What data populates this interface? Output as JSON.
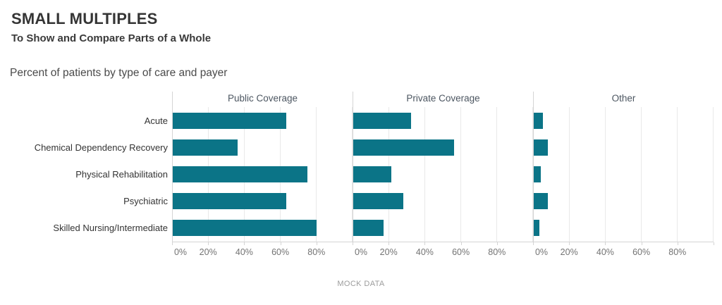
{
  "header": {
    "title": "SMALL MULTIPLES",
    "subtitle": "To Show and Compare Parts of a Whole"
  },
  "chart_title": "Percent of patients by type of care and payer",
  "footer": {
    "source": "MOCK DATA"
  },
  "colors": {
    "bar": "#0b7487",
    "grid": "#e9e9e9",
    "axis": "#d4d4d4",
    "tick_text": "#737373"
  },
  "chart_data": {
    "type": "bar",
    "orientation": "horizontal",
    "title": "Percent of patients by type of care and payer",
    "categories": [
      "Acute",
      "Chemical Dependency Recovery",
      "Physical Rehabilitation",
      "Psychiatric",
      "Skilled Nursing/Intermediate"
    ],
    "panels": [
      "Public Coverage",
      "Private Coverage",
      "Other"
    ],
    "series": [
      {
        "name": "Public Coverage",
        "values": [
          63,
          36,
          75,
          63,
          80
        ]
      },
      {
        "name": "Private Coverage",
        "values": [
          32,
          56,
          21,
          28,
          17
        ]
      },
      {
        "name": "Other",
        "values": [
          5,
          8,
          4,
          8,
          3
        ]
      }
    ],
    "unit": "%",
    "xlim": [
      0,
      100
    ],
    "x_tick_step": 20,
    "x_tick_labels": [
      "0%",
      "20%",
      "40%",
      "60%",
      "80%"
    ],
    "grid": true,
    "legend_position": "none",
    "caption": "MOCK DATA"
  }
}
